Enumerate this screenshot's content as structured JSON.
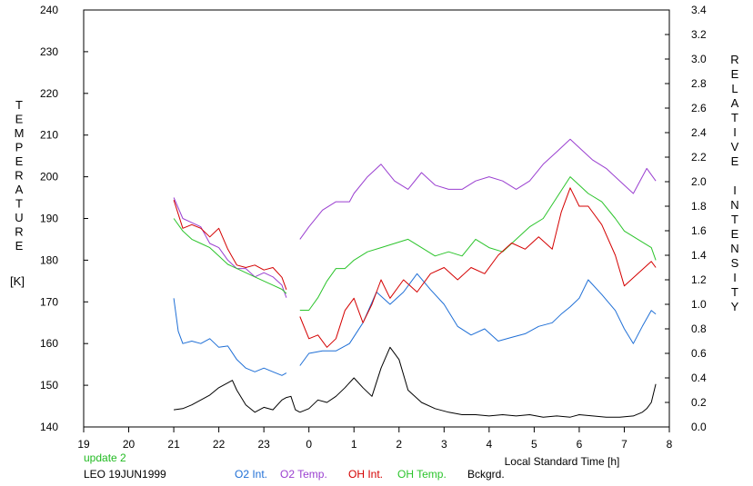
{
  "chart_data": {
    "type": "line",
    "yaxis_left": {
      "label_letters": [
        "T",
        "E",
        "M",
        "P",
        "E",
        "R",
        "A",
        "T",
        "U",
        "R",
        "E"
      ],
      "unit": "[K]",
      "ylim": [
        140,
        240
      ],
      "ticks": [
        140,
        150,
        160,
        170,
        180,
        190,
        200,
        210,
        220,
        230,
        240
      ]
    },
    "yaxis_right": {
      "label_top_letters": [
        "R",
        "E",
        "L",
        "A",
        "T",
        "I",
        "V",
        "E"
      ],
      "label_bottom_letters": [
        "I",
        "N",
        "T",
        "E",
        "N",
        "S",
        "I",
        "T",
        "Y"
      ],
      "ylim": [
        0,
        3.4
      ],
      "ticks": [
        "0.0",
        "0.2",
        "0.4",
        "0.6",
        "0.8",
        "1.0",
        "1.2",
        "1.4",
        "1.6",
        "1.8",
        "2.0",
        "2.2",
        "2.4",
        "2.6",
        "2.8",
        "3.0",
        "3.2",
        "3.4"
      ]
    },
    "xaxis": {
      "label": "Local Standard Time [h]",
      "xlim": [
        19,
        32
      ],
      "tick_labels": [
        "19",
        "20",
        "21",
        "22",
        "23",
        "0",
        "1",
        "2",
        "3",
        "4",
        "5",
        "6",
        "7",
        "8"
      ]
    },
    "footer": {
      "update": "update 2",
      "station": "LEO 19JUN1999"
    },
    "colors": {
      "o2_int": "#1f6fd6",
      "o2_temp": "#9a3fd0",
      "oh_int": "#d40000",
      "oh_temp": "#2bc42b",
      "bckgrd": "#000000",
      "update": "#22bb22"
    },
    "series": [
      {
        "name": "O2 Int.",
        "axis": "right",
        "color": "#1f6fd6",
        "segments": [
          {
            "x": [
              21.0,
              21.1,
              21.2,
              21.4,
              21.6,
              21.8,
              22.0,
              22.2,
              22.4,
              22.6,
              22.8,
              23.0,
              23.2,
              23.4,
              23.5
            ],
            "y": [
              1.05,
              0.78,
              0.68,
              0.7,
              0.68,
              0.72,
              0.65,
              0.66,
              0.55,
              0.48,
              0.45,
              0.48,
              0.45,
              0.42,
              0.44
            ]
          },
          {
            "x": [
              23.8,
              24.0,
              24.3,
              24.6,
              24.9,
              25.2,
              25.5,
              25.8,
              26.1,
              26.4,
              26.7,
              27.0,
              27.3,
              27.6,
              27.9,
              28.2,
              28.5,
              28.8,
              29.1,
              29.4,
              29.6,
              29.8,
              30.0,
              30.2,
              30.5,
              30.8,
              31.0,
              31.2,
              31.4,
              31.6,
              31.7
            ],
            "y": [
              0.5,
              0.6,
              0.62,
              0.62,
              0.68,
              0.85,
              1.1,
              1.0,
              1.1,
              1.25,
              1.12,
              1.0,
              0.82,
              0.75,
              0.8,
              0.7,
              0.73,
              0.76,
              0.82,
              0.85,
              0.92,
              0.98,
              1.05,
              1.2,
              1.08,
              0.95,
              0.8,
              0.68,
              0.82,
              0.95,
              0.92
            ]
          }
        ]
      },
      {
        "name": "O2 Temp.",
        "axis": "left",
        "color": "#9a3fd0",
        "segments": [
          {
            "x": [
              21.0,
              21.2,
              21.4,
              21.6,
              21.8,
              22.0,
              22.2,
              22.4,
              22.6,
              22.8,
              23.0,
              23.2,
              23.4,
              23.5
            ],
            "y": [
              195,
              190,
              189,
              188,
              184,
              183,
              180,
              178,
              178,
              176,
              177,
              176,
              174,
              171
            ]
          },
          {
            "x": [
              23.8,
              24.0,
              24.3,
              24.6,
              24.9,
              25.0,
              25.3,
              25.6,
              25.9,
              26.2,
              26.5,
              26.8,
              27.1,
              27.4,
              27.7,
              28.0,
              28.3,
              28.6,
              28.9,
              29.2,
              29.5,
              29.8,
              30.0,
              30.3,
              30.6,
              30.9,
              31.2,
              31.5,
              31.7
            ],
            "y": [
              185,
              188,
              192,
              194,
              194,
              196,
              200,
              203,
              199,
              197,
              201,
              198,
              197,
              197,
              199,
              200,
              199,
              197,
              199,
              203,
              206,
              209,
              207,
              204,
              202,
              199,
              196,
              202,
              199
            ]
          }
        ]
      },
      {
        "name": "OH Int.",
        "axis": "right",
        "color": "#d40000",
        "segments": [
          {
            "x": [
              21.0,
              21.2,
              21.4,
              21.6,
              21.8,
              22.0,
              22.2,
              22.4,
              22.6,
              22.8,
              23.0,
              23.2,
              23.4,
              23.5
            ],
            "y": [
              1.85,
              1.62,
              1.65,
              1.62,
              1.55,
              1.62,
              1.45,
              1.32,
              1.3,
              1.32,
              1.28,
              1.3,
              1.22,
              1.12
            ]
          },
          {
            "x": [
              23.8,
              24.0,
              24.2,
              24.4,
              24.6,
              24.8,
              25.0,
              25.2,
              25.4,
              25.6,
              25.8,
              26.1,
              26.4,
              26.7,
              27.0,
              27.3,
              27.6,
              27.9,
              28.2,
              28.5,
              28.8,
              29.1,
              29.4,
              29.6,
              29.8,
              30.0,
              30.2,
              30.5,
              30.8,
              31.0,
              31.3,
              31.6,
              31.7
            ],
            "y": [
              0.9,
              0.72,
              0.75,
              0.65,
              0.72,
              0.95,
              1.05,
              0.85,
              1.0,
              1.2,
              1.05,
              1.2,
              1.1,
              1.25,
              1.3,
              1.2,
              1.3,
              1.25,
              1.4,
              1.5,
              1.45,
              1.55,
              1.45,
              1.75,
              1.95,
              1.8,
              1.8,
              1.65,
              1.4,
              1.15,
              1.25,
              1.35,
              1.3
            ]
          }
        ]
      },
      {
        "name": "OH Temp.",
        "axis": "left",
        "color": "#2bc42b",
        "segments": [
          {
            "x": [
              21.0,
              21.2,
              21.4,
              21.6,
              21.8,
              22.0,
              22.2,
              22.4,
              22.6,
              22.8,
              23.0,
              23.2,
              23.4,
              23.5
            ],
            "y": [
              190,
              187,
              185,
              184,
              183,
              181,
              179,
              178,
              177,
              176,
              175,
              174,
              173,
              172
            ]
          },
          {
            "x": [
              23.8,
              24.0,
              24.2,
              24.4,
              24.6,
              24.8,
              25.0,
              25.3,
              25.6,
              25.9,
              26.2,
              26.5,
              26.8,
              27.1,
              27.4,
              27.7,
              28.0,
              28.3,
              28.6,
              28.9,
              29.2,
              29.5,
              29.8,
              30.0,
              30.2,
              30.5,
              30.8,
              31.0,
              31.3,
              31.6,
              31.7
            ],
            "y": [
              168,
              168,
              171,
              175,
              178,
              178,
              180,
              182,
              183,
              184,
              185,
              183,
              181,
              182,
              181,
              185,
              183,
              182,
              185,
              188,
              190,
              195,
              200,
              198,
              196,
              194,
              190,
              187,
              185,
              183,
              180
            ]
          }
        ]
      },
      {
        "name": "Bckgrd.",
        "axis": "right",
        "color": "#000000",
        "segments": [
          {
            "x": [
              21.0,
              21.2,
              21.4,
              21.6,
              21.8,
              22.0,
              22.2,
              22.3,
              22.4,
              22.6,
              22.8,
              23.0,
              23.2,
              23.4,
              23.5,
              23.6,
              23.7,
              23.8
            ],
            "y": [
              0.14,
              0.15,
              0.18,
              0.22,
              0.26,
              0.32,
              0.36,
              0.38,
              0.3,
              0.18,
              0.12,
              0.16,
              0.14,
              0.22,
              0.24,
              0.25,
              0.14,
              0.12
            ]
          },
          {
            "x": [
              23.8,
              24.0,
              24.2,
              24.4,
              24.6,
              24.8,
              25.0,
              25.2,
              25.4,
              25.6,
              25.8,
              26.0,
              26.2,
              26.5,
              26.8,
              27.1,
              27.4,
              27.7,
              28.0,
              28.3,
              28.6,
              28.9,
              29.2,
              29.5,
              29.8,
              30.0,
              30.3,
              30.6,
              30.9,
              31.2,
              31.4,
              31.5,
              31.6,
              31.7
            ],
            "y": [
              0.12,
              0.15,
              0.22,
              0.2,
              0.25,
              0.32,
              0.4,
              0.32,
              0.25,
              0.48,
              0.65,
              0.55,
              0.3,
              0.2,
              0.15,
              0.12,
              0.1,
              0.1,
              0.09,
              0.1,
              0.09,
              0.1,
              0.08,
              0.09,
              0.08,
              0.1,
              0.09,
              0.08,
              0.08,
              0.09,
              0.12,
              0.15,
              0.2,
              0.35
            ]
          }
        ]
      }
    ]
  }
}
